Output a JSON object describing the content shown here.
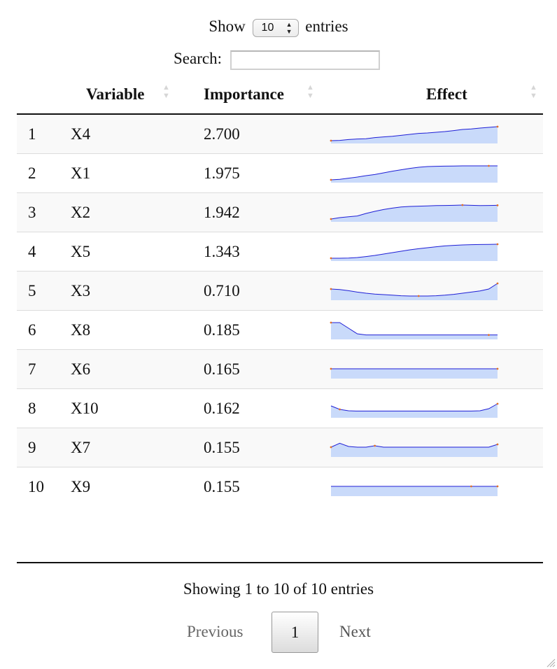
{
  "length_menu": {
    "show_label": "Show",
    "selected": "10",
    "entries_label": "entries"
  },
  "search": {
    "label": "Search:",
    "value": ""
  },
  "table": {
    "columns": [
      "",
      "Variable",
      "Importance",
      "Effect"
    ],
    "rows": [
      {
        "index": "1",
        "variable": "X4",
        "importance": "2.700",
        "effect": [
          0,
          0.02,
          0.08,
          0.12,
          0.14,
          0.22,
          0.27,
          0.31,
          0.38,
          0.45,
          0.52,
          0.55,
          0.6,
          0.65,
          0.72,
          0.8,
          0.84,
          0.9,
          0.95,
          1.0
        ],
        "marks": [
          0,
          19
        ]
      },
      {
        "index": "2",
        "variable": "X1",
        "importance": "1.975",
        "effect": [
          0,
          0.04,
          0.12,
          0.2,
          0.3,
          0.38,
          0.5,
          0.62,
          0.72,
          0.82,
          0.9,
          0.95,
          0.97,
          0.98,
          0.99,
          1.0,
          1.0,
          1.0,
          1.0,
          1.0
        ],
        "marks": [
          0,
          18
        ]
      },
      {
        "index": "3",
        "variable": "X2",
        "importance": "1.942",
        "effect": [
          0,
          0.1,
          0.16,
          0.22,
          0.4,
          0.55,
          0.68,
          0.78,
          0.86,
          0.9,
          0.92,
          0.94,
          0.96,
          0.97,
          0.98,
          1.0,
          0.98,
          0.96,
          0.97,
          0.98
        ],
        "marks": [
          0,
          15,
          19
        ]
      },
      {
        "index": "4",
        "variable": "X5",
        "importance": "1.343",
        "effect": [
          0,
          0.0,
          0.01,
          0.05,
          0.12,
          0.2,
          0.3,
          0.4,
          0.5,
          0.6,
          0.68,
          0.75,
          0.82,
          0.88,
          0.92,
          0.95,
          0.97,
          0.98,
          0.99,
          1.0
        ],
        "marks": [
          0,
          19
        ]
      },
      {
        "index": "5",
        "variable": "X3",
        "importance": "0.710",
        "effect": [
          0.6,
          0.56,
          0.48,
          0.38,
          0.3,
          0.24,
          0.2,
          0.16,
          0.12,
          0.1,
          0.1,
          0.1,
          0.12,
          0.16,
          0.22,
          0.3,
          0.38,
          0.46,
          0.6,
          1.0
        ],
        "marks": [
          0,
          10,
          19
        ]
      },
      {
        "index": "6",
        "variable": "X8",
        "importance": "0.185",
        "effect": [
          1.0,
          1.0,
          0.6,
          0.2,
          0.12,
          0.12,
          0.12,
          0.12,
          0.12,
          0.12,
          0.12,
          0.12,
          0.12,
          0.12,
          0.12,
          0.12,
          0.12,
          0.12,
          0.12,
          0.12
        ],
        "marks": [
          0,
          18
        ]
      },
      {
        "index": "7",
        "variable": "X6",
        "importance": "0.165",
        "effect": [
          0.5,
          0.5,
          0.5,
          0.5,
          0.5,
          0.5,
          0.5,
          0.5,
          0.5,
          0.5,
          0.5,
          0.5,
          0.5,
          0.5,
          0.5,
          0.5,
          0.5,
          0.5,
          0.5,
          0.5
        ],
        "marks": [
          0,
          19
        ]
      },
      {
        "index": "8",
        "variable": "X10",
        "importance": "0.162",
        "effect": [
          0.65,
          0.4,
          0.3,
          0.28,
          0.28,
          0.28,
          0.28,
          0.28,
          0.28,
          0.28,
          0.28,
          0.28,
          0.28,
          0.28,
          0.28,
          0.28,
          0.28,
          0.3,
          0.45,
          0.8
        ],
        "marks": [
          1,
          19
        ]
      },
      {
        "index": "9",
        "variable": "X7",
        "importance": "0.155",
        "effect": [
          0.5,
          0.78,
          0.55,
          0.5,
          0.5,
          0.6,
          0.5,
          0.5,
          0.5,
          0.5,
          0.5,
          0.5,
          0.5,
          0.5,
          0.5,
          0.5,
          0.5,
          0.5,
          0.5,
          0.7
        ],
        "marks": [
          0,
          5,
          19
        ]
      },
      {
        "index": "10",
        "variable": "X9",
        "importance": "0.155",
        "effect": [
          0.5,
          0.5,
          0.5,
          0.5,
          0.5,
          0.5,
          0.5,
          0.5,
          0.5,
          0.5,
          0.5,
          0.5,
          0.5,
          0.5,
          0.5,
          0.5,
          0.5,
          0.5,
          0.5,
          0.5
        ],
        "marks": [
          16,
          19
        ]
      }
    ]
  },
  "info": "Showing 1 to 10 of 10 entries",
  "pagination": {
    "previous": "Previous",
    "current": "1",
    "next": "Next"
  },
  "colors": {
    "line": "#1f1fd6",
    "fill": "#c9dafa",
    "marker": "#e0702a",
    "stripe": "#f9f9f9"
  }
}
